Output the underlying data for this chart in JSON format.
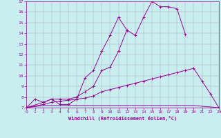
{
  "xlabel": "Windchill (Refroidissement éolien,°C)",
  "bg_color": "#c8eef0",
  "line_color": "#990099",
  "xlim": [
    0,
    23
  ],
  "ylim": [
    7,
    17
  ],
  "xticks": [
    0,
    1,
    2,
    3,
    4,
    5,
    6,
    7,
    8,
    9,
    10,
    11,
    12,
    13,
    14,
    15,
    16,
    17,
    18,
    19,
    20,
    21,
    22,
    23
  ],
  "yticks": [
    7,
    8,
    9,
    10,
    11,
    12,
    13,
    14,
    15,
    16,
    17
  ],
  "grid_color": "#aaaaaa",
  "line1_x": [
    0,
    1,
    2,
    3,
    4,
    5,
    6,
    7,
    8,
    9,
    10,
    11,
    12,
    13,
    14,
    15,
    16,
    17,
    18,
    19
  ],
  "line1_y": [
    7.0,
    7.8,
    7.5,
    7.8,
    7.8,
    7.8,
    8.0,
    8.5,
    9.0,
    10.5,
    10.8,
    12.3,
    14.3,
    13.8,
    15.5,
    17.0,
    16.5,
    16.5,
    16.3,
    13.9
  ],
  "line2_x": [
    0,
    2,
    3,
    4,
    5,
    6,
    7,
    8,
    9,
    10,
    11,
    12
  ],
  "line2_y": [
    7.0,
    7.5,
    7.8,
    7.3,
    7.3,
    7.8,
    9.8,
    10.5,
    12.3,
    13.8,
    15.5,
    14.3
  ],
  "line3_x": [
    0,
    2,
    3,
    4,
    5,
    6,
    7,
    8,
    9,
    10,
    11,
    12,
    13,
    14,
    15,
    16,
    17,
    18,
    19,
    20,
    21,
    22,
    23
  ],
  "line3_y": [
    7.0,
    7.3,
    7.5,
    7.6,
    7.7,
    7.8,
    7.9,
    8.1,
    8.5,
    8.7,
    8.9,
    9.1,
    9.3,
    9.5,
    9.7,
    9.9,
    10.1,
    10.3,
    10.5,
    10.7,
    9.5,
    8.3,
    7.0
  ],
  "line4_x": [
    0,
    2,
    3,
    4,
    5,
    6,
    7,
    8,
    9,
    10,
    11,
    12,
    13,
    14,
    15,
    16,
    17,
    18,
    19,
    20,
    23
  ],
  "line4_y": [
    7.0,
    7.2,
    7.2,
    7.2,
    7.2,
    7.2,
    7.2,
    7.2,
    7.2,
    7.2,
    7.2,
    7.2,
    7.2,
    7.2,
    7.2,
    7.2,
    7.2,
    7.2,
    7.2,
    7.2,
    7.0
  ]
}
